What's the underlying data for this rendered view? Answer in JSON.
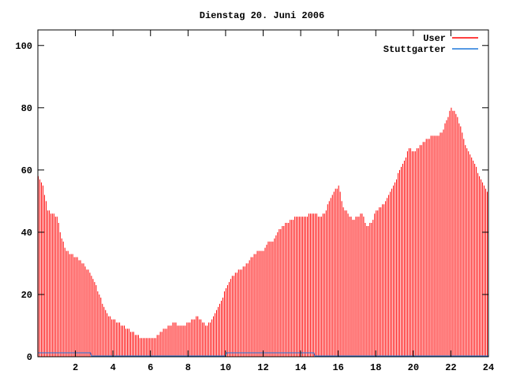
{
  "chart_data": {
    "type": "bar",
    "title": "Dienstag 20. Juni 2006",
    "xlabel": "",
    "ylabel": "",
    "xlim": [
      0,
      24
    ],
    "ylim": [
      0,
      105
    ],
    "xticks": [
      2,
      4,
      6,
      8,
      10,
      12,
      14,
      16,
      18,
      20,
      22,
      24
    ],
    "yticks": [
      0,
      20,
      40,
      60,
      80,
      100
    ],
    "grid": false,
    "legend_position": "top-right",
    "interval_minutes": 5,
    "series": [
      {
        "name": "User",
        "style": "impulses",
        "color": "#ff0000",
        "values": [
          58,
          57,
          56,
          55,
          52,
          50,
          47,
          47,
          46,
          46,
          46,
          45,
          45,
          43,
          40,
          38,
          37,
          35,
          34,
          34,
          33,
          33,
          33,
          32,
          32,
          32,
          31,
          31,
          30,
          30,
          29,
          28,
          28,
          27,
          26,
          25,
          24,
          23,
          21,
          20,
          19,
          17,
          16,
          15,
          14,
          13,
          13,
          12,
          12,
          12,
          11,
          11,
          11,
          10,
          10,
          10,
          9,
          9,
          9,
          8,
          8,
          8,
          7,
          7,
          7,
          6,
          6,
          6,
          6,
          6,
          6,
          6,
          6,
          6,
          6,
          6,
          7,
          7,
          8,
          8,
          9,
          9,
          9,
          10,
          10,
          10,
          11,
          11,
          11,
          10,
          10,
          10,
          10,
          10,
          10,
          11,
          11,
          11,
          12,
          12,
          12,
          13,
          13,
          12,
          12,
          11,
          11,
          10,
          10,
          11,
          11,
          12,
          13,
          14,
          15,
          16,
          17,
          18,
          19,
          21,
          22,
          23,
          24,
          25,
          26,
          26,
          27,
          27,
          28,
          28,
          28,
          29,
          29,
          30,
          30,
          31,
          32,
          32,
          33,
          33,
          34,
          34,
          34,
          34,
          34,
          35,
          36,
          37,
          37,
          37,
          37,
          38,
          39,
          40,
          41,
          41,
          42,
          42,
          43,
          43,
          43,
          44,
          44,
          44,
          45,
          45,
          45,
          45,
          45,
          45,
          45,
          45,
          45,
          46,
          46,
          46,
          46,
          46,
          46,
          45,
          45,
          45,
          46,
          46,
          47,
          49,
          50,
          51,
          52,
          53,
          54,
          54,
          55,
          53,
          50,
          48,
          47,
          47,
          46,
          45,
          45,
          44,
          44,
          45,
          45,
          45,
          46,
          46,
          45,
          43,
          42,
          42,
          43,
          43,
          44,
          46,
          47,
          47,
          48,
          48,
          49,
          49,
          50,
          51,
          52,
          53,
          54,
          55,
          56,
          57,
          59,
          60,
          61,
          62,
          63,
          64,
          66,
          67,
          67,
          66,
          66,
          66,
          67,
          67,
          68,
          68,
          69,
          69,
          70,
          70,
          70,
          71,
          71,
          71,
          71,
          71,
          71,
          72,
          72,
          73,
          75,
          76,
          77,
          79,
          80,
          79,
          79,
          78,
          77,
          75,
          74,
          72,
          70,
          68,
          67,
          66,
          65,
          64,
          63,
          62,
          61,
          59,
          58,
          57,
          56,
          55,
          54,
          53
        ]
      },
      {
        "name": "Stuttgarter",
        "style": "steps",
        "color": "#1e78dc",
        "x": [
          0,
          2.8,
          2.85,
          10,
          10.05,
          14.7,
          14.75,
          24
        ],
        "y": [
          1,
          1,
          0,
          0,
          1,
          1,
          0,
          0
        ]
      }
    ]
  }
}
